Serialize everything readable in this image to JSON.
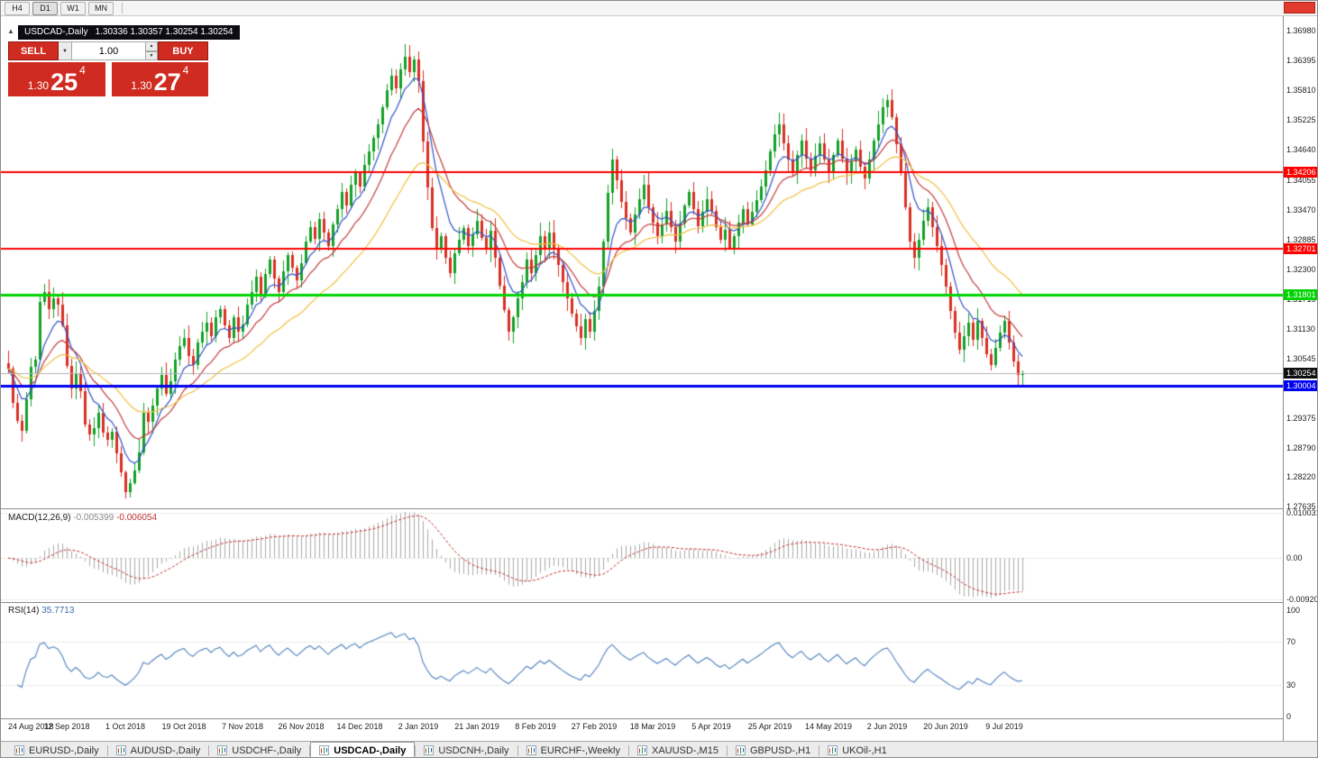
{
  "toolbar": {
    "timeframe_buttons": [
      "H4",
      "D1",
      "W1",
      "MN"
    ],
    "active_timeframe": "D1"
  },
  "colors": {
    "bull": "#13a027",
    "bear": "#d92f22",
    "ma_fast": "#3152c8",
    "ma_mid": "#c23b3b",
    "ma_slow": "#f0c040",
    "macd_hist": "#a8a8a8",
    "macd_signal": "#c03030",
    "rsi_line": "#4f81bd",
    "buy_sell": "#d02b20",
    "current_badge": "#101010"
  },
  "chart": {
    "symbol_period": "USDCAD-,Daily",
    "ohlc": [
      "1.30336",
      "1.30357",
      "1.30254",
      "1.30254"
    ]
  },
  "one_click_trading": {
    "sell_label": "SELL",
    "buy_label": "BUY",
    "volume": "1.00",
    "sell_price": {
      "prefix": "1.30",
      "big": "25",
      "sup": "4"
    },
    "buy_price": {
      "prefix": "1.30",
      "big": "27",
      "sup": "4"
    }
  },
  "indicators": {
    "macd": {
      "label": "MACD(12,26,9)",
      "value": "-0.005399",
      "signal_value": "-0.006054"
    },
    "rsi": {
      "label": "RSI(14)",
      "value": "35.7713"
    }
  },
  "tabs": [
    {
      "label": "EURUSD-,Daily",
      "active": false
    },
    {
      "label": "AUDUSD-,Daily",
      "active": false
    },
    {
      "label": "USDCHF-,Daily",
      "active": false
    },
    {
      "label": "USDCAD-,Daily",
      "active": true
    },
    {
      "label": "USDCNH-,Daily",
      "active": false
    },
    {
      "label": "EURCHF-,Weekly",
      "active": false
    },
    {
      "label": "XAUUSD-,M15",
      "active": false
    },
    {
      "label": "GBPUSD-,H1",
      "active": false
    },
    {
      "label": "UKOil-,H1",
      "active": false
    }
  ],
  "chart_data": {
    "type": "candlestick",
    "symbol": "USDCAD",
    "timeframe": "Daily",
    "y_range": [
      1.276,
      1.3727
    ],
    "y_axis_labels": [
      "1.36980",
      "1.36395",
      "1.35810",
      "1.35225",
      "1.34640",
      "1.34055",
      "1.33470",
      "1.32885",
      "1.32300",
      "1.31715",
      "1.31130",
      "1.30545",
      "1.29960",
      "1.29375",
      "1.28790",
      "1.28220",
      "1.27635"
    ],
    "x_axis_labels": [
      {
        "bar": 0,
        "label": "24 Aug 2018"
      },
      {
        "bar": 13,
        "label": "12 Sep 2018"
      },
      {
        "bar": 26,
        "label": "1 Oct 2018"
      },
      {
        "bar": 39,
        "label": "19 Oct 2018"
      },
      {
        "bar": 52,
        "label": "7 Nov 2018"
      },
      {
        "bar": 65,
        "label": "26 Nov 2018"
      },
      {
        "bar": 78,
        "label": "14 Dec 2018"
      },
      {
        "bar": 91,
        "label": "2 Jan 2019"
      },
      {
        "bar": 104,
        "label": "21 Jan 2019"
      },
      {
        "bar": 117,
        "label": "8 Feb 2019"
      },
      {
        "bar": 130,
        "label": "27 Feb 2019"
      },
      {
        "bar": 143,
        "label": "18 Mar 2019"
      },
      {
        "bar": 156,
        "label": "5 Apr 2019"
      },
      {
        "bar": 169,
        "label": "25 Apr 2019"
      },
      {
        "bar": 182,
        "label": "14 May 2019"
      },
      {
        "bar": 195,
        "label": "2 Jun 2019"
      },
      {
        "bar": 208,
        "label": "20 Jun 2019"
      },
      {
        "bar": 221,
        "label": "9 Jul 2019"
      }
    ],
    "closes": [
      1.3035,
      1.2968,
      1.2932,
      1.2912,
      1.2975,
      1.3038,
      1.3052,
      1.3165,
      1.3185,
      1.3152,
      1.3172,
      1.316,
      1.312,
      1.304,
      1.2995,
      1.3025,
      1.299,
      1.2925,
      1.2905,
      1.2918,
      1.2948,
      1.2908,
      1.2895,
      1.291,
      1.2868,
      1.283,
      1.2792,
      1.281,
      1.2835,
      1.287,
      1.2948,
      1.293,
      1.2962,
      1.2995,
      1.3022,
      1.2985,
      1.301,
      1.3052,
      1.3078,
      1.3095,
      1.306,
      1.3042,
      1.3085,
      1.3108,
      1.3125,
      1.3098,
      1.3135,
      1.3152,
      1.312,
      1.3095,
      1.3135,
      1.3108,
      1.3122,
      1.316,
      1.3185,
      1.3215,
      1.3178,
      1.322,
      1.3248,
      1.3212,
      1.3185,
      1.3225,
      1.3258,
      1.3232,
      1.3208,
      1.3242,
      1.3285,
      1.3312,
      1.329,
      1.3328,
      1.3302,
      1.3275,
      1.3318,
      1.3348,
      1.3382,
      1.3355,
      1.3395,
      1.3418,
      1.3392,
      1.3435,
      1.3462,
      1.3488,
      1.3515,
      1.3548,
      1.3582,
      1.361,
      1.3585,
      1.3622,
      1.3648,
      1.3618,
      1.3642,
      1.36,
      1.348,
      1.339,
      1.331,
      1.3268,
      1.3295,
      1.3252,
      1.3222,
      1.3262,
      1.3288,
      1.331,
      1.3275,
      1.3298,
      1.3325,
      1.3292,
      1.3268,
      1.3305,
      1.3252,
      1.3198,
      1.315,
      1.3108,
      1.3135,
      1.3172,
      1.3205,
      1.3248,
      1.3222,
      1.3258,
      1.3295,
      1.3268,
      1.3302,
      1.3272,
      1.3238,
      1.3205,
      1.3172,
      1.3142,
      1.3118,
      1.3095,
      1.3132,
      1.3108,
      1.3148,
      1.3195,
      1.3285,
      1.338,
      1.3445,
      1.3405,
      1.3362,
      1.333,
      1.3302,
      1.3338,
      1.3368,
      1.3395,
      1.3352,
      1.3322,
      1.3295,
      1.3318,
      1.3345,
      1.3312,
      1.3285,
      1.332,
      1.3355,
      1.3382,
      1.3348,
      1.3315,
      1.3342,
      1.3368,
      1.3345,
      1.3312,
      1.3288,
      1.3308,
      1.3272,
      1.3295,
      1.3322,
      1.3348,
      1.3318,
      1.3342,
      1.3365,
      1.3392,
      1.3425,
      1.3462,
      1.3495,
      1.3515,
      1.3478,
      1.3445,
      1.3422,
      1.3455,
      1.3482,
      1.3448,
      1.3425,
      1.3452,
      1.3478,
      1.3445,
      1.3422,
      1.3455,
      1.3482,
      1.3448,
      1.3418,
      1.3442,
      1.3465,
      1.3432,
      1.3408,
      1.3445,
      1.3482,
      1.3515,
      1.3548,
      1.3562,
      1.3528,
      1.3475,
      1.3422,
      1.3352,
      1.3285,
      1.3252,
      1.3288,
      1.3325,
      1.3352,
      1.3312,
      1.3275,
      1.3238,
      1.3195,
      1.3148,
      1.3105,
      1.3072,
      1.3098,
      1.3125,
      1.3092,
      1.3128,
      1.3095,
      1.3062,
      1.3042,
      1.3075,
      1.3105,
      1.3128,
      1.3085,
      1.3048,
      1.3022,
      1.30254
    ],
    "moving_averages": [
      {
        "period": 7,
        "color": "#3152c8"
      },
      {
        "period": 15,
        "color": "#c23b3b"
      },
      {
        "period": 32,
        "color": "#f0c040"
      }
    ],
    "hlines": [
      {
        "value": 1.34206,
        "label": "1.34206",
        "color": "#fe0000",
        "thickness": 2
      },
      {
        "value": 1.32701,
        "label": "1.32701",
        "color": "#fe0000",
        "thickness": 2
      },
      {
        "value": 1.31801,
        "label": "1.31801",
        "color": "#00d400",
        "thickness": 3
      },
      {
        "value": 1.30004,
        "label": "1.30004",
        "color": "#0000f0",
        "thickness": 3
      }
    ],
    "current_price": {
      "value": 1.30254,
      "label": "1.30254"
    },
    "macd": {
      "fast": 12,
      "slow": 26,
      "signal": 9,
      "axis_labels": [
        {
          "value": 0.010031,
          "label": "0.010031"
        },
        {
          "value": 0,
          "label": "0.00"
        },
        {
          "value": -0.009201,
          "label": "-0.009201"
        }
      ]
    },
    "rsi": {
      "period": 14,
      "y_range": [
        0,
        100
      ],
      "levels": [
        70,
        30
      ],
      "axis_labels": [
        {
          "value": 100,
          "label": "100"
        },
        {
          "value": 70,
          "label": "70"
        },
        {
          "value": 30,
          "label": "30"
        },
        {
          "value": 0,
          "label": "0"
        }
      ]
    }
  }
}
